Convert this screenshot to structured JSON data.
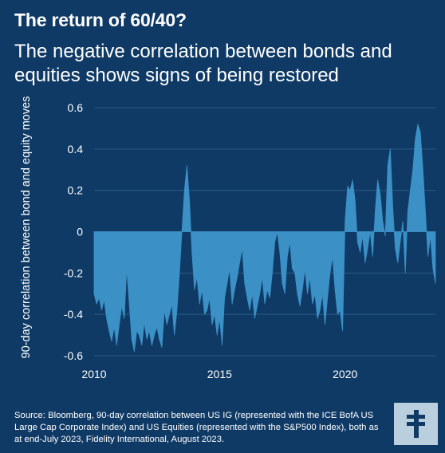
{
  "header": {
    "title": "The return of 60/40?",
    "subtitle": "The negative correlation between bonds and equities shows signs of being restored"
  },
  "footer": {
    "source": "Source: Bloomberg, 90-day correlation between US IG (represented with the ICE BofA US Large Cap Corporate Index) and US Equities (represented with the S&P500 Index), both as at end-July 2023, Fidelity International, August 2023."
  },
  "logo": {
    "icon": "fidelity-logo-icon"
  },
  "colors": {
    "background": "#0f3a66",
    "area": "#3b90c6",
    "grid": "#2c5a86",
    "text": "#ffffff",
    "logo_bg": "#b9cfdd",
    "logo_fg": "#0f3a66"
  },
  "chart_data": {
    "type": "area",
    "title": "",
    "xlabel": "",
    "ylabel": "90-day correlation between bond and equity moves",
    "xlim": [
      2010,
      2023.6
    ],
    "ylim": [
      -0.6,
      0.6
    ],
    "xticks": [
      "2010",
      "2015",
      "2020"
    ],
    "yticks": [
      "0.6",
      "0.4",
      "0.2",
      "0",
      "-0.2",
      "-0.4",
      "-0.6"
    ],
    "grid": true,
    "legend": "none",
    "x": [
      2010.0,
      2010.1,
      2010.2,
      2010.3,
      2010.4,
      2010.5,
      2010.6,
      2010.7,
      2010.8,
      2010.9,
      2011.0,
      2011.1,
      2011.2,
      2011.3,
      2011.4,
      2011.5,
      2011.6,
      2011.7,
      2011.8,
      2011.9,
      2012.0,
      2012.1,
      2012.2,
      2012.3,
      2012.4,
      2012.5,
      2012.6,
      2012.7,
      2012.8,
      2012.9,
      2013.0,
      2013.1,
      2013.2,
      2013.3,
      2013.4,
      2013.5,
      2013.6,
      2013.7,
      2013.8,
      2013.9,
      2014.0,
      2014.1,
      2014.2,
      2014.3,
      2014.4,
      2014.5,
      2014.6,
      2014.7,
      2014.8,
      2014.9,
      2015.0,
      2015.1,
      2015.2,
      2015.3,
      2015.4,
      2015.5,
      2015.6,
      2015.7,
      2015.8,
      2015.9,
      2016.0,
      2016.1,
      2016.2,
      2016.3,
      2016.4,
      2016.5,
      2016.6,
      2016.7,
      2016.8,
      2016.9,
      2017.0,
      2017.1,
      2017.2,
      2017.3,
      2017.4,
      2017.5,
      2017.6,
      2017.7,
      2017.8,
      2017.9,
      2018.0,
      2018.1,
      2018.2,
      2018.3,
      2018.4,
      2018.5,
      2018.6,
      2018.7,
      2018.8,
      2018.9,
      2019.0,
      2019.1,
      2019.2,
      2019.3,
      2019.4,
      2019.5,
      2019.6,
      2019.7,
      2019.8,
      2019.9,
      2020.0,
      2020.1,
      2020.2,
      2020.3,
      2020.4,
      2020.5,
      2020.6,
      2020.7,
      2020.8,
      2020.9,
      2021.0,
      2021.1,
      2021.2,
      2021.3,
      2021.4,
      2021.5,
      2021.6,
      2021.7,
      2021.8,
      2021.9,
      2022.0,
      2022.1,
      2022.2,
      2022.3,
      2022.4,
      2022.5,
      2022.6,
      2022.7,
      2022.8,
      2022.9,
      2023.0,
      2023.1,
      2023.2,
      2023.3,
      2023.4,
      2023.5,
      2023.6
    ],
    "series": [
      {
        "values": [
          -0.3,
          -0.35,
          -0.32,
          -0.38,
          -0.33,
          -0.42,
          -0.48,
          -0.53,
          -0.46,
          -0.55,
          -0.45,
          -0.36,
          -0.42,
          -0.18,
          -0.35,
          -0.52,
          -0.58,
          -0.48,
          -0.5,
          -0.55,
          -0.44,
          -0.52,
          -0.48,
          -0.55,
          -0.5,
          -0.46,
          -0.52,
          -0.56,
          -0.38,
          -0.45,
          -0.4,
          -0.35,
          -0.5,
          -0.38,
          -0.2,
          0.0,
          0.2,
          0.32,
          0.15,
          -0.1,
          -0.28,
          -0.22,
          -0.35,
          -0.28,
          -0.4,
          -0.38,
          -0.32,
          -0.45,
          -0.4,
          -0.5,
          -0.42,
          -0.55,
          -0.32,
          -0.25,
          -0.18,
          -0.35,
          -0.28,
          -0.22,
          -0.15,
          -0.08,
          -0.25,
          -0.32,
          -0.38,
          -0.3,
          -0.42,
          -0.36,
          -0.3,
          -0.22,
          -0.35,
          -0.28,
          -0.32,
          -0.2,
          -0.05,
          0.0,
          -0.1,
          -0.25,
          -0.3,
          -0.12,
          -0.05,
          -0.18,
          -0.2,
          -0.3,
          -0.36,
          -0.28,
          -0.18,
          -0.3,
          -0.22,
          -0.35,
          -0.3,
          -0.42,
          -0.38,
          -0.3,
          -0.45,
          -0.32,
          -0.2,
          -0.12,
          -0.28,
          -0.4,
          -0.38,
          -0.48,
          0.05,
          0.22,
          0.2,
          0.25,
          0.15,
          -0.05,
          -0.1,
          -0.02,
          -0.15,
          -0.08,
          0.0,
          -0.12,
          0.1,
          0.25,
          0.18,
          0.05,
          -0.02,
          0.32,
          0.4,
          0.12,
          -0.08,
          -0.15,
          -0.05,
          0.05,
          -0.2,
          0.1,
          0.2,
          0.3,
          0.45,
          0.52,
          0.48,
          0.3,
          0.1,
          -0.12,
          -0.02,
          -0.18,
          -0.25
        ]
      }
    ]
  }
}
